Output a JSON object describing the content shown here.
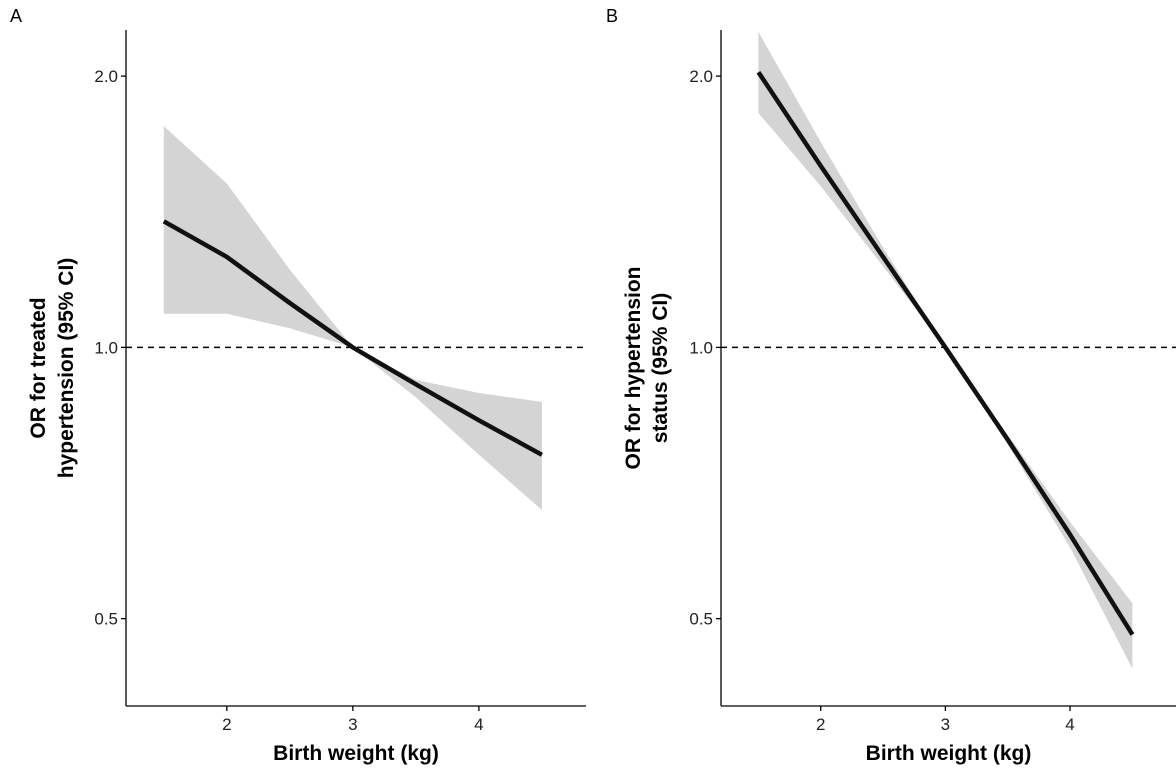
{
  "chart_data": [
    {
      "panel_label": "A",
      "type": "line",
      "xlabel": "Birth weight (kg)",
      "ylabel_lines": [
        "OR for treated",
        "hypertension (95% CI)"
      ],
      "y_scale": "log",
      "xlim": [
        1.2,
        4.85
      ],
      "ylim": [
        0.4,
        2.25
      ],
      "x_ticks": [
        2,
        3,
        4
      ],
      "x_tick_labels": [
        "2",
        "3",
        "4"
      ],
      "y_ticks": [
        0.5,
        1.0,
        2.0
      ],
      "y_tick_labels": [
        "0.5",
        "1.0",
        "2.0"
      ],
      "reference_line_y": 1.0,
      "grid": false,
      "series": [
        {
          "x": [
            1.5,
            2.0,
            2.5,
            3.0,
            3.5,
            4.0,
            4.5
          ],
          "y": [
            1.38,
            1.26,
            1.12,
            1.0,
            0.91,
            0.83,
            0.76
          ],
          "ci_lower": [
            1.09,
            1.09,
            1.05,
            1.0,
            0.88,
            0.76,
            0.66
          ],
          "ci_upper": [
            1.76,
            1.52,
            1.22,
            1.0,
            0.92,
            0.89,
            0.87
          ]
        }
      ]
    },
    {
      "panel_label": "B",
      "type": "line",
      "xlabel": "Birth weight (kg)",
      "ylabel_lines": [
        "OR for hypertension",
        "status (95% CI)"
      ],
      "y_scale": "log",
      "xlim": [
        1.2,
        4.85
      ],
      "ylim": [
        0.4,
        2.25
      ],
      "x_ticks": [
        2,
        3,
        4
      ],
      "x_tick_labels": [
        "2",
        "3",
        "4"
      ],
      "y_ticks": [
        0.5,
        1.0,
        2.0
      ],
      "y_tick_labels": [
        "0.5",
        "1.0",
        "2.0"
      ],
      "reference_line_y": 1.0,
      "grid": false,
      "series": [
        {
          "x": [
            1.5,
            2.0,
            2.5,
            3.0,
            3.5,
            4.0,
            4.5
          ],
          "y": [
            2.02,
            1.59,
            1.26,
            1.0,
            0.79,
            0.62,
            0.48
          ],
          "ci_lower": [
            1.82,
            1.51,
            1.23,
            1.0,
            0.78,
            0.6,
            0.44
          ],
          "ci_upper": [
            2.24,
            1.69,
            1.29,
            1.0,
            0.8,
            0.64,
            0.52
          ]
        }
      ]
    }
  ]
}
